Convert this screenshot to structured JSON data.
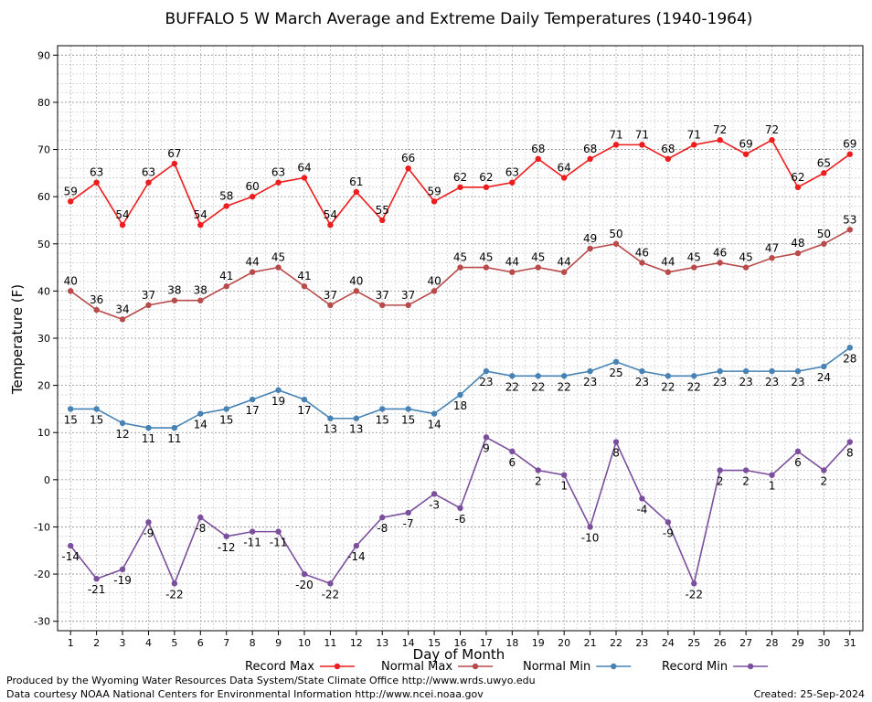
{
  "chart_data": {
    "type": "line",
    "title": "BUFFALO 5 W March Average and Extreme Daily Temperatures (1940-1964)",
    "xlabel": "Day of Month",
    "ylabel": "Temperature (F)",
    "xlim": [
      0.5,
      31.5
    ],
    "ylim": [
      -32,
      92
    ],
    "x_ticks": [
      1,
      2,
      3,
      4,
      5,
      6,
      7,
      8,
      9,
      10,
      11,
      12,
      13,
      14,
      15,
      16,
      17,
      18,
      19,
      20,
      21,
      22,
      23,
      24,
      25,
      26,
      27,
      28,
      29,
      30,
      31
    ],
    "y_ticks": [
      -30,
      -20,
      -10,
      0,
      10,
      20,
      30,
      40,
      50,
      60,
      70,
      80,
      90
    ],
    "grid": true,
    "legend_position": "bottom",
    "x": [
      1,
      2,
      3,
      4,
      5,
      6,
      7,
      8,
      9,
      10,
      11,
      12,
      13,
      14,
      15,
      16,
      17,
      18,
      19,
      20,
      21,
      22,
      23,
      24,
      25,
      26,
      27,
      28,
      29,
      30,
      31
    ],
    "series": [
      {
        "name": "Record Max",
        "color": "#ee1c1c",
        "label_pos": "above",
        "values": [
          59,
          63,
          54,
          63,
          67,
          54,
          58,
          60,
          63,
          64,
          54,
          61,
          55,
          66,
          59,
          62,
          62,
          63,
          68,
          64,
          68,
          71,
          71,
          68,
          71,
          72,
          69,
          72,
          62,
          65,
          69
        ]
      },
      {
        "name": "Normal Max",
        "color": "#b84a4a",
        "label_pos": "above",
        "values": [
          40,
          36,
          34,
          37,
          38,
          38,
          41,
          44,
          45,
          41,
          37,
          40,
          37,
          37,
          40,
          45,
          45,
          44,
          45,
          44,
          49,
          50,
          46,
          44,
          45,
          46,
          45,
          47,
          48,
          50,
          53
        ]
      },
      {
        "name": "Normal Min",
        "color": "#4682b4",
        "label_pos": "below",
        "values": [
          15,
          15,
          12,
          11,
          11,
          14,
          15,
          17,
          19,
          17,
          13,
          13,
          15,
          15,
          14,
          18,
          23,
          22,
          22,
          22,
          23,
          25,
          23,
          22,
          22,
          23,
          23,
          23,
          23,
          24,
          28
        ]
      },
      {
        "name": "Record Min",
        "color": "#7b4f9d",
        "label_pos": "below",
        "values": [
          -14,
          -21,
          -19,
          -9,
          -22,
          -8,
          -12,
          -11,
          -11,
          -20,
          -22,
          -14,
          -8,
          -7,
          -3,
          -6,
          9,
          6,
          2,
          1,
          -10,
          8,
          -4,
          -9,
          -22,
          2,
          2,
          1,
          6,
          2,
          8
        ]
      }
    ]
  },
  "footer": {
    "produced_by": "Produced by the Wyoming Water Resources Data System/State Climate Office http://www.wrds.uwyo.edu",
    "courtesy": "Data courtesy NOAA National Centers for Environmental Information http://www.ncei.noaa.gov",
    "created": "Created:  25-Sep-2024"
  }
}
